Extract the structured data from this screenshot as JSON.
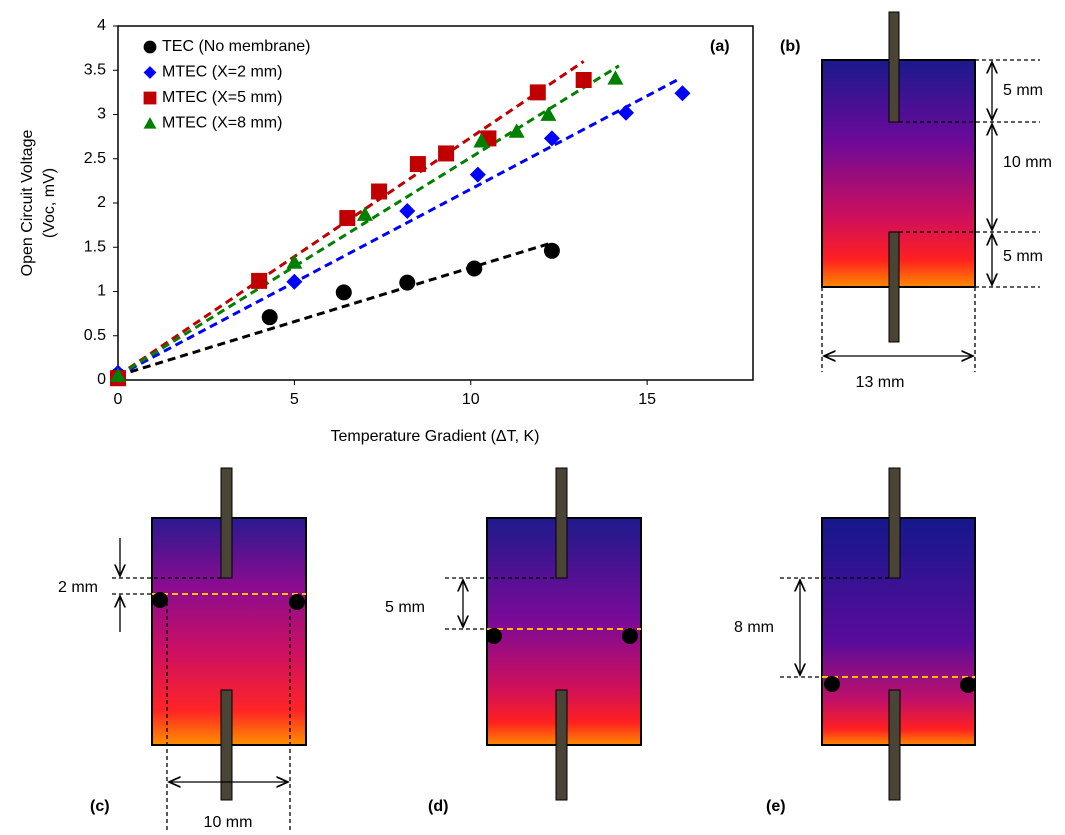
{
  "chart_data": {
    "type": "scatter",
    "panel_label": "(a)",
    "x_label": "Temperature Gradient (ΔT, K)",
    "y_label": [
      "Open Circuit Voltage",
      "(Voc, mV)"
    ],
    "xlim": [
      0,
      18
    ],
    "xticks": [
      0,
      5,
      10,
      15
    ],
    "ylim": [
      0,
      4
    ],
    "yticks": [
      0,
      0.5,
      1,
      1.5,
      2,
      2.5,
      3,
      3.5,
      4
    ],
    "legend": "top-left",
    "series": [
      {
        "name": "TEC (No membrane)",
        "color": "#000000",
        "marker": "circle",
        "x": [
          0,
          4.3,
          6.4,
          8.2,
          10.1,
          12.3
        ],
        "values": [
          0.05,
          0.71,
          0.99,
          1.1,
          1.26,
          1.46
        ],
        "trend": {
          "x": [
            0,
            12.3
          ],
          "y": [
            0.05,
            1.55
          ]
        }
      },
      {
        "name": "MTEC (X=2 mm)",
        "color": "#0000ff",
        "marker": "diamond",
        "x": [
          0,
          5,
          8.2,
          10.2,
          12.3,
          14.4,
          16
        ],
        "values": [
          0.08,
          1.11,
          1.91,
          2.32,
          2.73,
          3.02,
          3.24
        ],
        "trend": {
          "x": [
            0,
            15.9
          ],
          "y": [
            0.05,
            3.4
          ]
        }
      },
      {
        "name": "MTEC (X=5 mm)",
        "color": "#c00000",
        "marker": "square",
        "x": [
          0,
          4,
          6.5,
          7.4,
          8.5,
          9.3,
          10.5,
          11.9,
          13.2
        ],
        "values": [
          0.02,
          1.12,
          1.83,
          2.13,
          2.44,
          2.56,
          2.73,
          3.25,
          3.39
        ],
        "trend": {
          "x": [
            0,
            13.2
          ],
          "y": [
            0.05,
            3.6
          ]
        }
      },
      {
        "name": "MTEC (X=8 mm)",
        "color": "#008000",
        "marker": "triangle",
        "x": [
          0,
          5,
          7,
          10.3,
          11.3,
          12.2,
          14.1
        ],
        "values": [
          0.05,
          1.33,
          1.87,
          2.7,
          2.81,
          3.0,
          3.41
        ],
        "trend": {
          "x": [
            0,
            14.2
          ],
          "y": [
            0.05,
            3.55
          ]
        }
      }
    ]
  },
  "diagrams": {
    "b": {
      "label": "(b)",
      "top": "5 mm",
      "middle": "10 mm",
      "bottom": "5 mm",
      "width": "13 mm"
    },
    "c": {
      "label": "(c)",
      "gap": "2 mm",
      "width": "10 mm"
    },
    "d": {
      "label": "(d)",
      "gap": "5 mm"
    },
    "e": {
      "label": "(e)",
      "gap": "8 mm"
    }
  }
}
